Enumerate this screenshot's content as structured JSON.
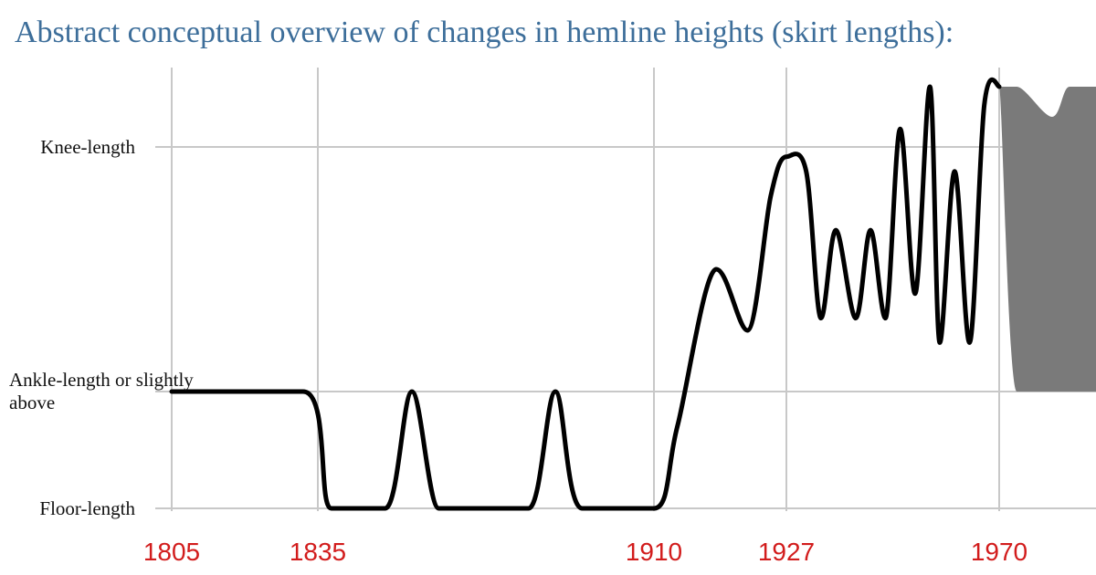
{
  "chart_data": {
    "type": "line",
    "title": "Abstract conceptual overview of changes in hemline heights (skirt lengths):",
    "xlabel": "",
    "ylabel": "",
    "x_ticks": [
      "1805",
      "1835",
      "1910",
      "1927",
      "1970"
    ],
    "x_tick_values": [
      1805,
      1835,
      1910,
      1927,
      1970
    ],
    "xlim": [
      1805,
      1981
    ],
    "y_levels": [
      {
        "label": "Knee-length",
        "value": 2
      },
      {
        "label": "Ankle-length or slightly above",
        "value": 1
      },
      {
        "label": "Floor-length",
        "value": 0
      }
    ],
    "ylim": [
      0,
      2.5
    ],
    "grid": true,
    "series": [
      {
        "x": [
          1805,
          1832,
          1838,
          1850,
          1856,
          1862,
          1870,
          1882,
          1888,
          1894,
          1910,
          1913,
          1918,
          1922,
          1925,
          1927,
          1931,
          1934,
          1937,
          1941,
          1944,
          1947,
          1950,
          1953,
          1956,
          1958,
          1961,
          1964,
          1967,
          1970
        ],
        "y": [
          1,
          1,
          0,
          0,
          1,
          0,
          0,
          0,
          1,
          0,
          0,
          0.7,
          1.5,
          1.25,
          1.8,
          1.96,
          1.9,
          1.3,
          1.66,
          1.3,
          1.66,
          1.3,
          2.15,
          1.4,
          2.5,
          1.2,
          1.9,
          1.2,
          2.35,
          2.5
        ]
      }
    ],
    "band": {
      "x": [
        1970,
        1972,
        1976,
        1978,
        1981
      ],
      "upper": [
        2.5,
        2.5,
        2.25,
        2.5,
        2.5
      ],
      "lower": [
        2.5,
        1.0,
        1.0,
        1.0,
        1.0
      ]
    },
    "colors": {
      "title": "#3d6e9a",
      "x_ticks": "#d21c1c",
      "y_labels": "#111111",
      "grid": "#c8c8c8",
      "curve": "#000000",
      "band": "#7a7a7a"
    }
  }
}
